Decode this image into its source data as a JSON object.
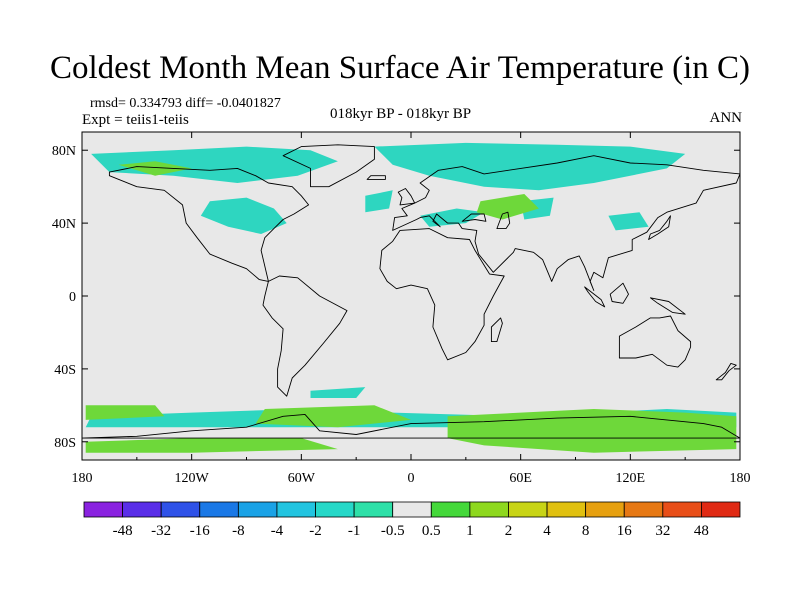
{
  "title": "Coldest Month Mean Surface Air Temperature (in C)",
  "stats": "rmsd= 0.334793 diff= -0.0401827",
  "experiment": "Expt = teiis1-teiis",
  "period": "018kyr BP - 018kyr BP",
  "season": "ANN",
  "map": {
    "background_color": "#e8e8e8",
    "lat_ticks": [
      "80N",
      "40N",
      "0",
      "40S",
      "80S"
    ],
    "lat_values": [
      80,
      40,
      0,
      -40,
      -80
    ],
    "lon_ticks": [
      "180",
      "120W",
      "60W",
      "0",
      "60E",
      "120E",
      "180"
    ],
    "lon_values": [
      -180,
      -120,
      -60,
      0,
      60,
      120,
      180
    ]
  },
  "colorbar": {
    "labels": [
      "-48",
      "-32",
      "-16",
      "-8",
      "-4",
      "-2",
      "-1",
      "-0.5",
      "0.5",
      "1",
      "2",
      "4",
      "8",
      "16",
      "32",
      "48"
    ],
    "colors": [
      "#8a22e0",
      "#5a2ee8",
      "#2f52e8",
      "#1a78e6",
      "#1aa2e6",
      "#22c4e0",
      "#26d8c8",
      "#2ee0a8",
      "#e8e8e8",
      "#44d83a",
      "#8ed81e",
      "#c8d416",
      "#e0c010",
      "#e6a010",
      "#e67814",
      "#e84e18",
      "#e02a14"
    ]
  },
  "fields": {
    "cool_color": "#2ed6c0",
    "warm_color": "#6ed83a",
    "regions": [
      {
        "kind": "cool",
        "lonlat": [
          [
            -175,
            78
          ],
          [
            -130,
            80
          ],
          [
            -90,
            82
          ],
          [
            -55,
            80
          ],
          [
            -40,
            74
          ],
          [
            -62,
            66
          ],
          [
            -95,
            62
          ],
          [
            -130,
            66
          ],
          [
            -165,
            68
          ]
        ]
      },
      {
        "kind": "cool",
        "lonlat": [
          [
            -20,
            82
          ],
          [
            30,
            84
          ],
          [
            80,
            83
          ],
          [
            120,
            82
          ],
          [
            150,
            78
          ],
          [
            140,
            70
          ],
          [
            100,
            62
          ],
          [
            70,
            58
          ],
          [
            40,
            60
          ],
          [
            10,
            66
          ],
          [
            -10,
            72
          ]
        ]
      },
      {
        "kind": "cool",
        "lonlat": [
          [
            -110,
            52
          ],
          [
            -90,
            54
          ],
          [
            -75,
            48
          ],
          [
            -68,
            40
          ],
          [
            -82,
            34
          ],
          [
            -100,
            38
          ],
          [
            -115,
            44
          ]
        ]
      },
      {
        "kind": "cool",
        "lonlat": [
          [
            -25,
            55
          ],
          [
            -10,
            58
          ],
          [
            -12,
            48
          ],
          [
            -25,
            46
          ]
        ]
      },
      {
        "kind": "cool",
        "lonlat": [
          [
            5,
            44
          ],
          [
            25,
            48
          ],
          [
            40,
            46
          ],
          [
            30,
            40
          ],
          [
            10,
            38
          ]
        ]
      },
      {
        "kind": "cool",
        "lonlat": [
          [
            60,
            52
          ],
          [
            78,
            54
          ],
          [
            76,
            44
          ],
          [
            62,
            42
          ]
        ]
      },
      {
        "kind": "cool",
        "lonlat": [
          [
            108,
            44
          ],
          [
            125,
            46
          ],
          [
            130,
            38
          ],
          [
            112,
            36
          ]
        ]
      },
      {
        "kind": "cool",
        "lonlat": [
          [
            -55,
            -52
          ],
          [
            -25,
            -50
          ],
          [
            -30,
            -56
          ],
          [
            -55,
            -56
          ]
        ]
      },
      {
        "kind": "cool",
        "lonlat": [
          [
            -175,
            -66
          ],
          [
            -120,
            -64
          ],
          [
            -60,
            -62
          ],
          [
            -10,
            -64
          ],
          [
            60,
            -66
          ],
          [
            140,
            -62
          ],
          [
            178,
            -64
          ],
          [
            178,
            -72
          ],
          [
            120,
            -70
          ],
          [
            40,
            -72
          ],
          [
            -20,
            -72
          ],
          [
            -90,
            -72
          ],
          [
            -150,
            -72
          ],
          [
            -178,
            -72
          ]
        ]
      },
      {
        "kind": "warm",
        "lonlat": [
          [
            -178,
            -60
          ],
          [
            -140,
            -60
          ],
          [
            -135,
            -66
          ],
          [
            -178,
            -68
          ]
        ]
      },
      {
        "kind": "warm",
        "lonlat": [
          [
            -80,
            -62
          ],
          [
            -20,
            -60
          ],
          [
            0,
            -68
          ],
          [
            -40,
            -72
          ],
          [
            -85,
            -70
          ]
        ]
      },
      {
        "kind": "warm",
        "lonlat": [
          [
            20,
            -66
          ],
          [
            60,
            -64
          ],
          [
            100,
            -62
          ],
          [
            150,
            -64
          ],
          [
            178,
            -66
          ],
          [
            178,
            -84
          ],
          [
            100,
            -86
          ],
          [
            40,
            -82
          ],
          [
            20,
            -78
          ]
        ]
      },
      {
        "kind": "warm",
        "lonlat": [
          [
            -178,
            -80
          ],
          [
            -120,
            -78
          ],
          [
            -60,
            -78
          ],
          [
            -40,
            -84
          ],
          [
            -120,
            -86
          ],
          [
            -178,
            -86
          ]
        ]
      },
      {
        "kind": "warm",
        "lonlat": [
          [
            38,
            52
          ],
          [
            62,
            56
          ],
          [
            70,
            48
          ],
          [
            50,
            42
          ],
          [
            36,
            46
          ]
        ]
      },
      {
        "kind": "warm",
        "lonlat": [
          [
            -160,
            72
          ],
          [
            -140,
            74
          ],
          [
            -120,
            70
          ],
          [
            -140,
            66
          ]
        ]
      }
    ]
  },
  "coastlines": [
    {
      "name": "north-america",
      "lonlat": [
        [
          -165,
          66
        ],
        [
          -150,
          60
        ],
        [
          -135,
          58
        ],
        [
          -125,
          50
        ],
        [
          -123,
          40
        ],
        [
          -117,
          32
        ],
        [
          -110,
          23
        ],
        [
          -98,
          18
        ],
        [
          -90,
          15
        ],
        [
          -83,
          9
        ],
        [
          -78,
          8
        ],
        [
          -82,
          25
        ],
        [
          -80,
          32
        ],
        [
          -75,
          37
        ],
        [
          -70,
          42
        ],
        [
          -64,
          45
        ],
        [
          -56,
          50
        ],
        [
          -60,
          55
        ],
        [
          -65,
          60
        ],
        [
          -78,
          62
        ],
        [
          -85,
          66
        ],
        [
          -95,
          70
        ],
        [
          -110,
          69
        ],
        [
          -130,
          70
        ],
        [
          -150,
          71
        ],
        [
          -165,
          68
        ]
      ]
    },
    {
      "name": "greenland",
      "lonlat": [
        [
          -55,
          60
        ],
        [
          -45,
          60
        ],
        [
          -30,
          68
        ],
        [
          -20,
          75
        ],
        [
          -20,
          82
        ],
        [
          -40,
          83
        ],
        [
          -60,
          82
        ],
        [
          -70,
          77
        ],
        [
          -55,
          70
        ]
      ]
    },
    {
      "name": "south-america",
      "lonlat": [
        [
          -78,
          8
        ],
        [
          -72,
          11
        ],
        [
          -62,
          10
        ],
        [
          -50,
          0
        ],
        [
          -35,
          -8
        ],
        [
          -39,
          -15
        ],
        [
          -48,
          -26
        ],
        [
          -58,
          -38
        ],
        [
          -65,
          -45
        ],
        [
          -68,
          -55
        ],
        [
          -73,
          -50
        ],
        [
          -73,
          -40
        ],
        [
          -71,
          -30
        ],
        [
          -70,
          -18
        ],
        [
          -76,
          -12
        ],
        [
          -81,
          -5
        ],
        [
          -80,
          0
        ]
      ]
    },
    {
      "name": "africa",
      "lonlat": [
        [
          -17,
          15
        ],
        [
          -16,
          25
        ],
        [
          -10,
          30
        ],
        [
          -6,
          36
        ],
        [
          10,
          37
        ],
        [
          20,
          32
        ],
        [
          32,
          31
        ],
        [
          35,
          25
        ],
        [
          43,
          12
        ],
        [
          51,
          11
        ],
        [
          45,
          0
        ],
        [
          40,
          -10
        ],
        [
          40,
          -16
        ],
        [
          35,
          -25
        ],
        [
          30,
          -31
        ],
        [
          20,
          -35
        ],
        [
          17,
          -29
        ],
        [
          12,
          -17
        ],
        [
          13,
          -5
        ],
        [
          9,
          4
        ],
        [
          0,
          6
        ],
        [
          -8,
          4
        ],
        [
          -13,
          8
        ]
      ]
    },
    {
      "name": "eurasia",
      "lonlat": [
        [
          -10,
          36
        ],
        [
          -9,
          43
        ],
        [
          -2,
          44
        ],
        [
          -5,
          48
        ],
        [
          2,
          51
        ],
        [
          8,
          54
        ],
        [
          10,
          58
        ],
        [
          5,
          62
        ],
        [
          15,
          69
        ],
        [
          28,
          71
        ],
        [
          40,
          67
        ],
        [
          60,
          70
        ],
        [
          80,
          73
        ],
        [
          100,
          77
        ],
        [
          120,
          73
        ],
        [
          140,
          72
        ],
        [
          160,
          69
        ],
        [
          180,
          67
        ],
        [
          178,
          62
        ],
        [
          160,
          58
        ],
        [
          156,
          51
        ],
        [
          140,
          46
        ],
        [
          135,
          43
        ],
        [
          129,
          35
        ],
        [
          121,
          31
        ],
        [
          121,
          25
        ],
        [
          108,
          21
        ],
        [
          105,
          10
        ],
        [
          100,
          13
        ],
        [
          98,
          8
        ],
        [
          100,
          3
        ],
        [
          95,
          16
        ],
        [
          92,
          22
        ],
        [
          86,
          20
        ],
        [
          80,
          15
        ],
        [
          77,
          8
        ],
        [
          72,
          20
        ],
        [
          67,
          24
        ],
        [
          57,
          26
        ],
        [
          56,
          24
        ],
        [
          45,
          13
        ],
        [
          37,
          23
        ],
        [
          35,
          30
        ],
        [
          36,
          36
        ],
        [
          28,
          37
        ],
        [
          26,
          40
        ],
        [
          20,
          40
        ],
        [
          14,
          45
        ],
        [
          12,
          41
        ],
        [
          16,
          38
        ],
        [
          10,
          44
        ],
        [
          5,
          43
        ],
        [
          3,
          42
        ]
      ]
    },
    {
      "name": "australia",
      "lonlat": [
        [
          114,
          -22
        ],
        [
          114,
          -34
        ],
        [
          123,
          -34
        ],
        [
          132,
          -32
        ],
        [
          140,
          -38
        ],
        [
          146,
          -39
        ],
        [
          150,
          -35
        ],
        [
          153,
          -28
        ],
        [
          153,
          -25
        ],
        [
          146,
          -19
        ],
        [
          142,
          -11
        ],
        [
          136,
          -12
        ],
        [
          131,
          -12
        ],
        [
          123,
          -17
        ]
      ]
    },
    {
      "name": "antarctica",
      "lonlat": [
        [
          -180,
          -78
        ],
        [
          -150,
          -77
        ],
        [
          -120,
          -74
        ],
        [
          -90,
          -72
        ],
        [
          -70,
          -66
        ],
        [
          -58,
          -65
        ],
        [
          -50,
          -74
        ],
        [
          -30,
          -76
        ],
        [
          0,
          -70
        ],
        [
          40,
          -69
        ],
        [
          80,
          -67
        ],
        [
          120,
          -66
        ],
        [
          160,
          -70
        ],
        [
          170,
          -72
        ],
        [
          180,
          -78
        ]
      ]
    },
    {
      "name": "uk",
      "lonlat": [
        [
          -6,
          50
        ],
        [
          2,
          51
        ],
        [
          0,
          55
        ],
        [
          -3,
          59
        ],
        [
          -7,
          57
        ],
        [
          -5,
          54
        ]
      ]
    },
    {
      "name": "japan",
      "lonlat": [
        [
          130,
          31
        ],
        [
          135,
          34
        ],
        [
          141,
          38
        ],
        [
          142,
          44
        ],
        [
          140,
          41
        ],
        [
          136,
          36
        ],
        [
          131,
          34
        ]
      ]
    },
    {
      "name": "madagascar",
      "lonlat": [
        [
          44,
          -25
        ],
        [
          47,
          -25
        ],
        [
          50,
          -15
        ],
        [
          49,
          -12
        ],
        [
          44,
          -17
        ]
      ]
    },
    {
      "name": "new-zealand",
      "lonlat": [
        [
          167,
          -46
        ],
        [
          172,
          -42
        ],
        [
          175,
          -37
        ],
        [
          178,
          -38
        ],
        [
          174,
          -41
        ],
        [
          170,
          -46
        ]
      ]
    },
    {
      "name": "black-sea",
      "lonlat": [
        [
          28,
          41
        ],
        [
          33,
          45
        ],
        [
          40,
          45
        ],
        [
          41,
          41
        ],
        [
          35,
          42
        ]
      ]
    },
    {
      "name": "caspian",
      "lonlat": [
        [
          47,
          37
        ],
        [
          50,
          45
        ],
        [
          53,
          46
        ],
        [
          54,
          40
        ],
        [
          52,
          37
        ]
      ]
    },
    {
      "name": "iceland",
      "lonlat": [
        [
          -24,
          64
        ],
        [
          -14,
          64
        ],
        [
          -14,
          66
        ],
        [
          -22,
          66
        ]
      ]
    },
    {
      "name": "borneo",
      "lonlat": [
        [
          109,
          1
        ],
        [
          116,
          7
        ],
        [
          119,
          1
        ],
        [
          116,
          -4
        ],
        [
          110,
          -3
        ]
      ]
    },
    {
      "name": "sumatra",
      "lonlat": [
        [
          95,
          5
        ],
        [
          104,
          -2
        ],
        [
          106,
          -6
        ],
        [
          101,
          -3
        ],
        [
          97,
          2
        ]
      ]
    },
    {
      "name": "new-guinea",
      "lonlat": [
        [
          131,
          -1
        ],
        [
          141,
          -3
        ],
        [
          150,
          -10
        ],
        [
          143,
          -9
        ],
        [
          135,
          -4
        ]
      ]
    }
  ]
}
